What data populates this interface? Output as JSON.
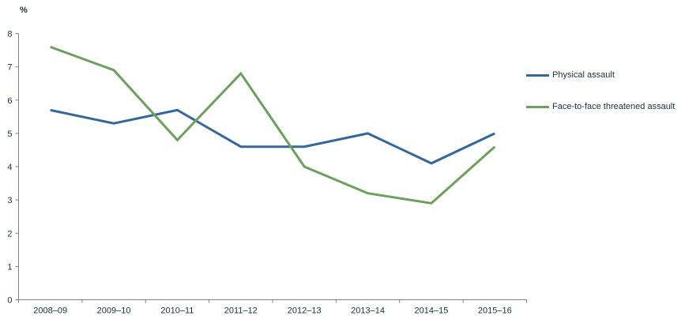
{
  "chart_data": {
    "type": "line",
    "title": "",
    "xlabel": "",
    "ylabel": "%",
    "categories": [
      "2008–09",
      "2009–10",
      "2010–11",
      "2011–12",
      "2012–13",
      "2013–14",
      "2014–15",
      "2015–16"
    ],
    "series": [
      {
        "name": "Physical assault",
        "color": "#34679A",
        "values": [
          5.7,
          5.3,
          5.7,
          4.6,
          4.6,
          5.0,
          4.1,
          5.0
        ]
      },
      {
        "name": "Face-to-face threatened assault",
        "color": "#6BA15C",
        "values": [
          7.6,
          6.9,
          4.8,
          6.8,
          4.0,
          3.2,
          2.9,
          4.6
        ]
      }
    ],
    "ylim": [
      0,
      8
    ],
    "yticks": [
      0,
      1,
      2,
      3,
      4,
      5,
      6,
      7,
      8
    ],
    "grid": false,
    "legend_position": "right",
    "axis_color": "#808080",
    "text_color": "#1f2d3d",
    "line_width": 3
  }
}
